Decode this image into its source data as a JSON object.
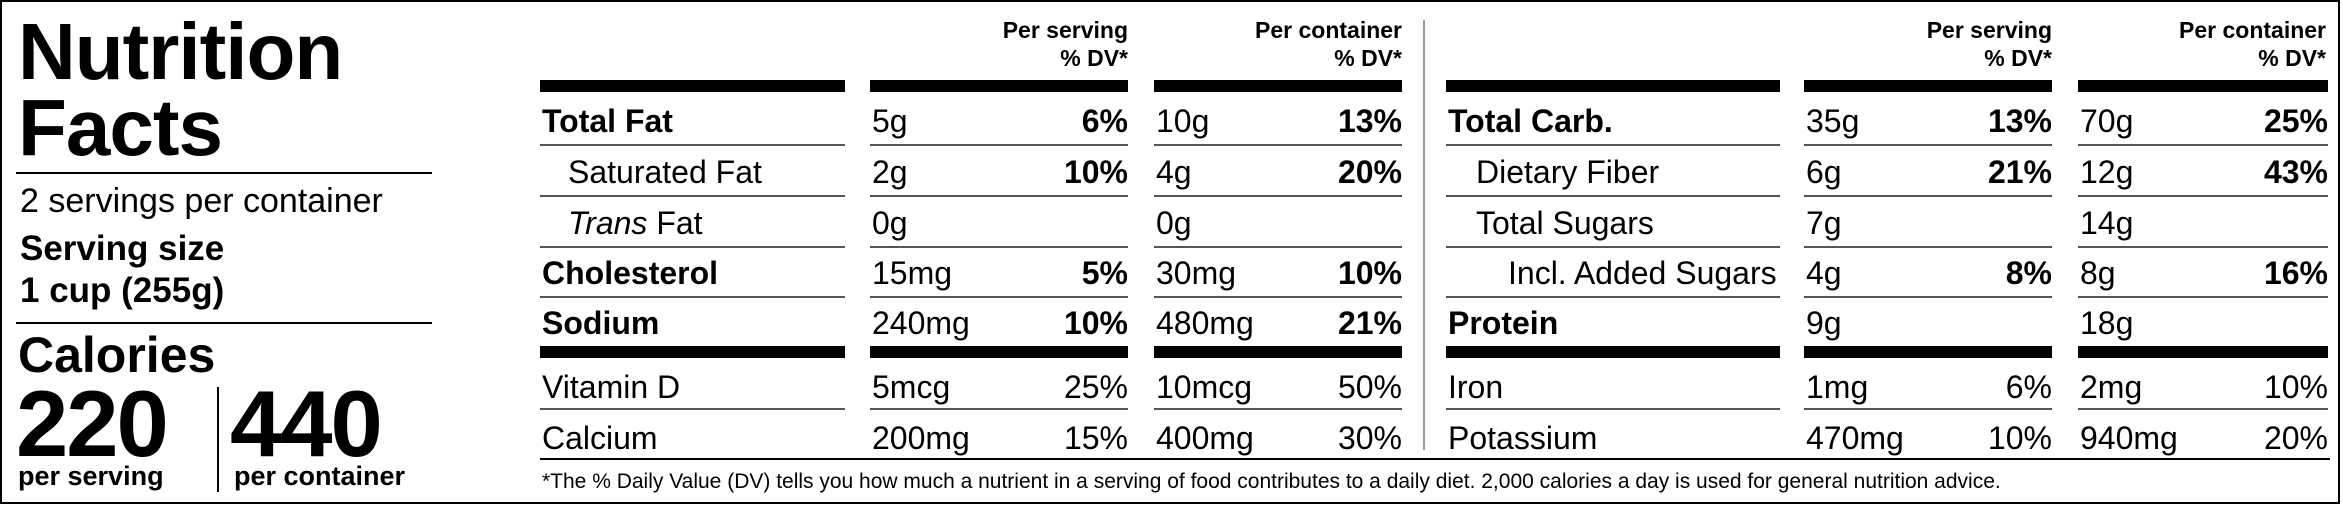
{
  "header": {
    "title_line1": "Nutrition",
    "title_line2": "Facts",
    "servings_per_container": "2 servings per container",
    "serving_size_label": "Serving size",
    "serving_size_value": "1 cup (255g)"
  },
  "calories": {
    "label": "Calories",
    "per_serving": "220",
    "per_serving_label": "per serving",
    "per_container": "440",
    "per_container_label": "per container"
  },
  "columns": {
    "per_serving_line1": "Per serving",
    "per_serving_line2": "% DV*",
    "per_container_line1": "Per container",
    "per_container_line2": "% DV*"
  },
  "left_rows": [
    {
      "name": "Total Fat",
      "serv_amt": "5g",
      "serv_dv": "6%",
      "cont_amt": "10g",
      "cont_dv": "13%"
    },
    {
      "name": "Saturated Fat",
      "serv_amt": "2g",
      "serv_dv": "10%",
      "cont_amt": "4g",
      "cont_dv": "20%"
    },
    {
      "name_italic": "Trans",
      "name_rest": " Fat",
      "serv_amt": "0g",
      "serv_dv": "",
      "cont_amt": "0g",
      "cont_dv": ""
    },
    {
      "name": "Cholesterol",
      "serv_amt": "15mg",
      "serv_dv": "5%",
      "cont_amt": "30mg",
      "cont_dv": "10%"
    },
    {
      "name": "Sodium",
      "serv_amt": "240mg",
      "serv_dv": "10%",
      "cont_amt": "480mg",
      "cont_dv": "21%"
    },
    {
      "name": "Vitamin D",
      "serv_amt": "5mcg",
      "serv_dv": "25%",
      "cont_amt": "10mcg",
      "cont_dv": "50%"
    },
    {
      "name": "Calcium",
      "serv_amt": "200mg",
      "serv_dv": "15%",
      "cont_amt": "400mg",
      "cont_dv": "30%"
    }
  ],
  "right_rows": [
    {
      "name": "Total Carb.",
      "serv_amt": "35g",
      "serv_dv": "13%",
      "cont_amt": "70g",
      "cont_dv": "25%"
    },
    {
      "name": "Dietary Fiber",
      "serv_amt": "6g",
      "serv_dv": "21%",
      "cont_amt": "12g",
      "cont_dv": "43%"
    },
    {
      "name": "Total Sugars",
      "serv_amt": "7g",
      "serv_dv": "",
      "cont_amt": "14g",
      "cont_dv": ""
    },
    {
      "name": "Incl. Added Sugars",
      "serv_amt": "4g",
      "serv_dv": "8%",
      "cont_amt": "8g",
      "cont_dv": "16%"
    },
    {
      "name": "Protein",
      "serv_amt": "9g",
      "serv_dv": "",
      "cont_amt": "18g",
      "cont_dv": ""
    },
    {
      "name": "Iron",
      "serv_amt": "1mg",
      "serv_dv": "6%",
      "cont_amt": "2mg",
      "cont_dv": "10%"
    },
    {
      "name": "Potassium",
      "serv_amt": "470mg",
      "serv_dv": "10%",
      "cont_amt": "940mg",
      "cont_dv": "20%"
    }
  ],
  "footnote": "*The % Daily Value (DV) tells you how much a nutrient in a serving of food contributes to a daily diet. 2,000 calories a day is used for general nutrition advice."
}
